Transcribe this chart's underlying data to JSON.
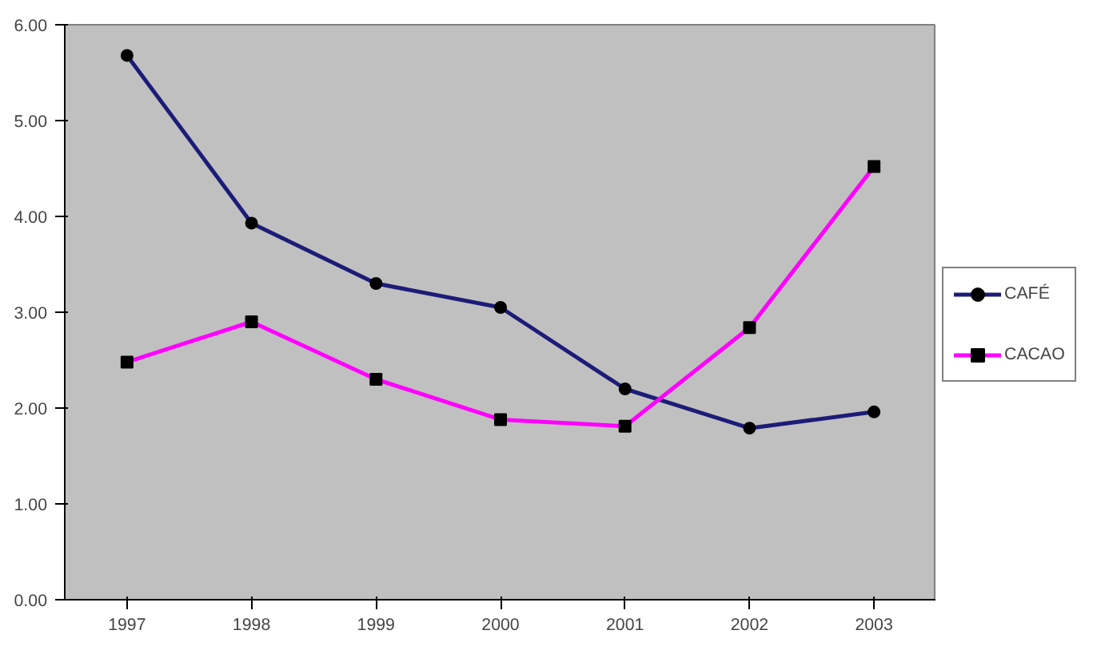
{
  "chart_data": {
    "type": "line",
    "categories": [
      "1997",
      "1998",
      "1999",
      "2000",
      "2001",
      "2002",
      "2003"
    ],
    "series": [
      {
        "name": "CAFÉ",
        "color": "#1c1c78",
        "marker": "circle",
        "values": [
          5.68,
          3.93,
          3.3,
          3.05,
          2.2,
          1.79,
          1.96
        ]
      },
      {
        "name": "CACAO",
        "color": "#ff00ff",
        "marker": "square",
        "values": [
          2.48,
          2.9,
          2.3,
          1.88,
          1.81,
          2.84,
          4.52
        ]
      }
    ],
    "ylim": [
      0,
      6
    ],
    "yticks": [
      {
        "value": 0,
        "label": "0.00"
      },
      {
        "value": 1,
        "label": "1.00"
      },
      {
        "value": 2,
        "label": "2.00"
      },
      {
        "value": 3,
        "label": "3.00"
      },
      {
        "value": 4,
        "label": "4.00"
      },
      {
        "value": 5,
        "label": "5.00"
      },
      {
        "value": 6,
        "label": "6.00"
      }
    ],
    "grid": false,
    "legend": "right",
    "line_style": "solid"
  }
}
